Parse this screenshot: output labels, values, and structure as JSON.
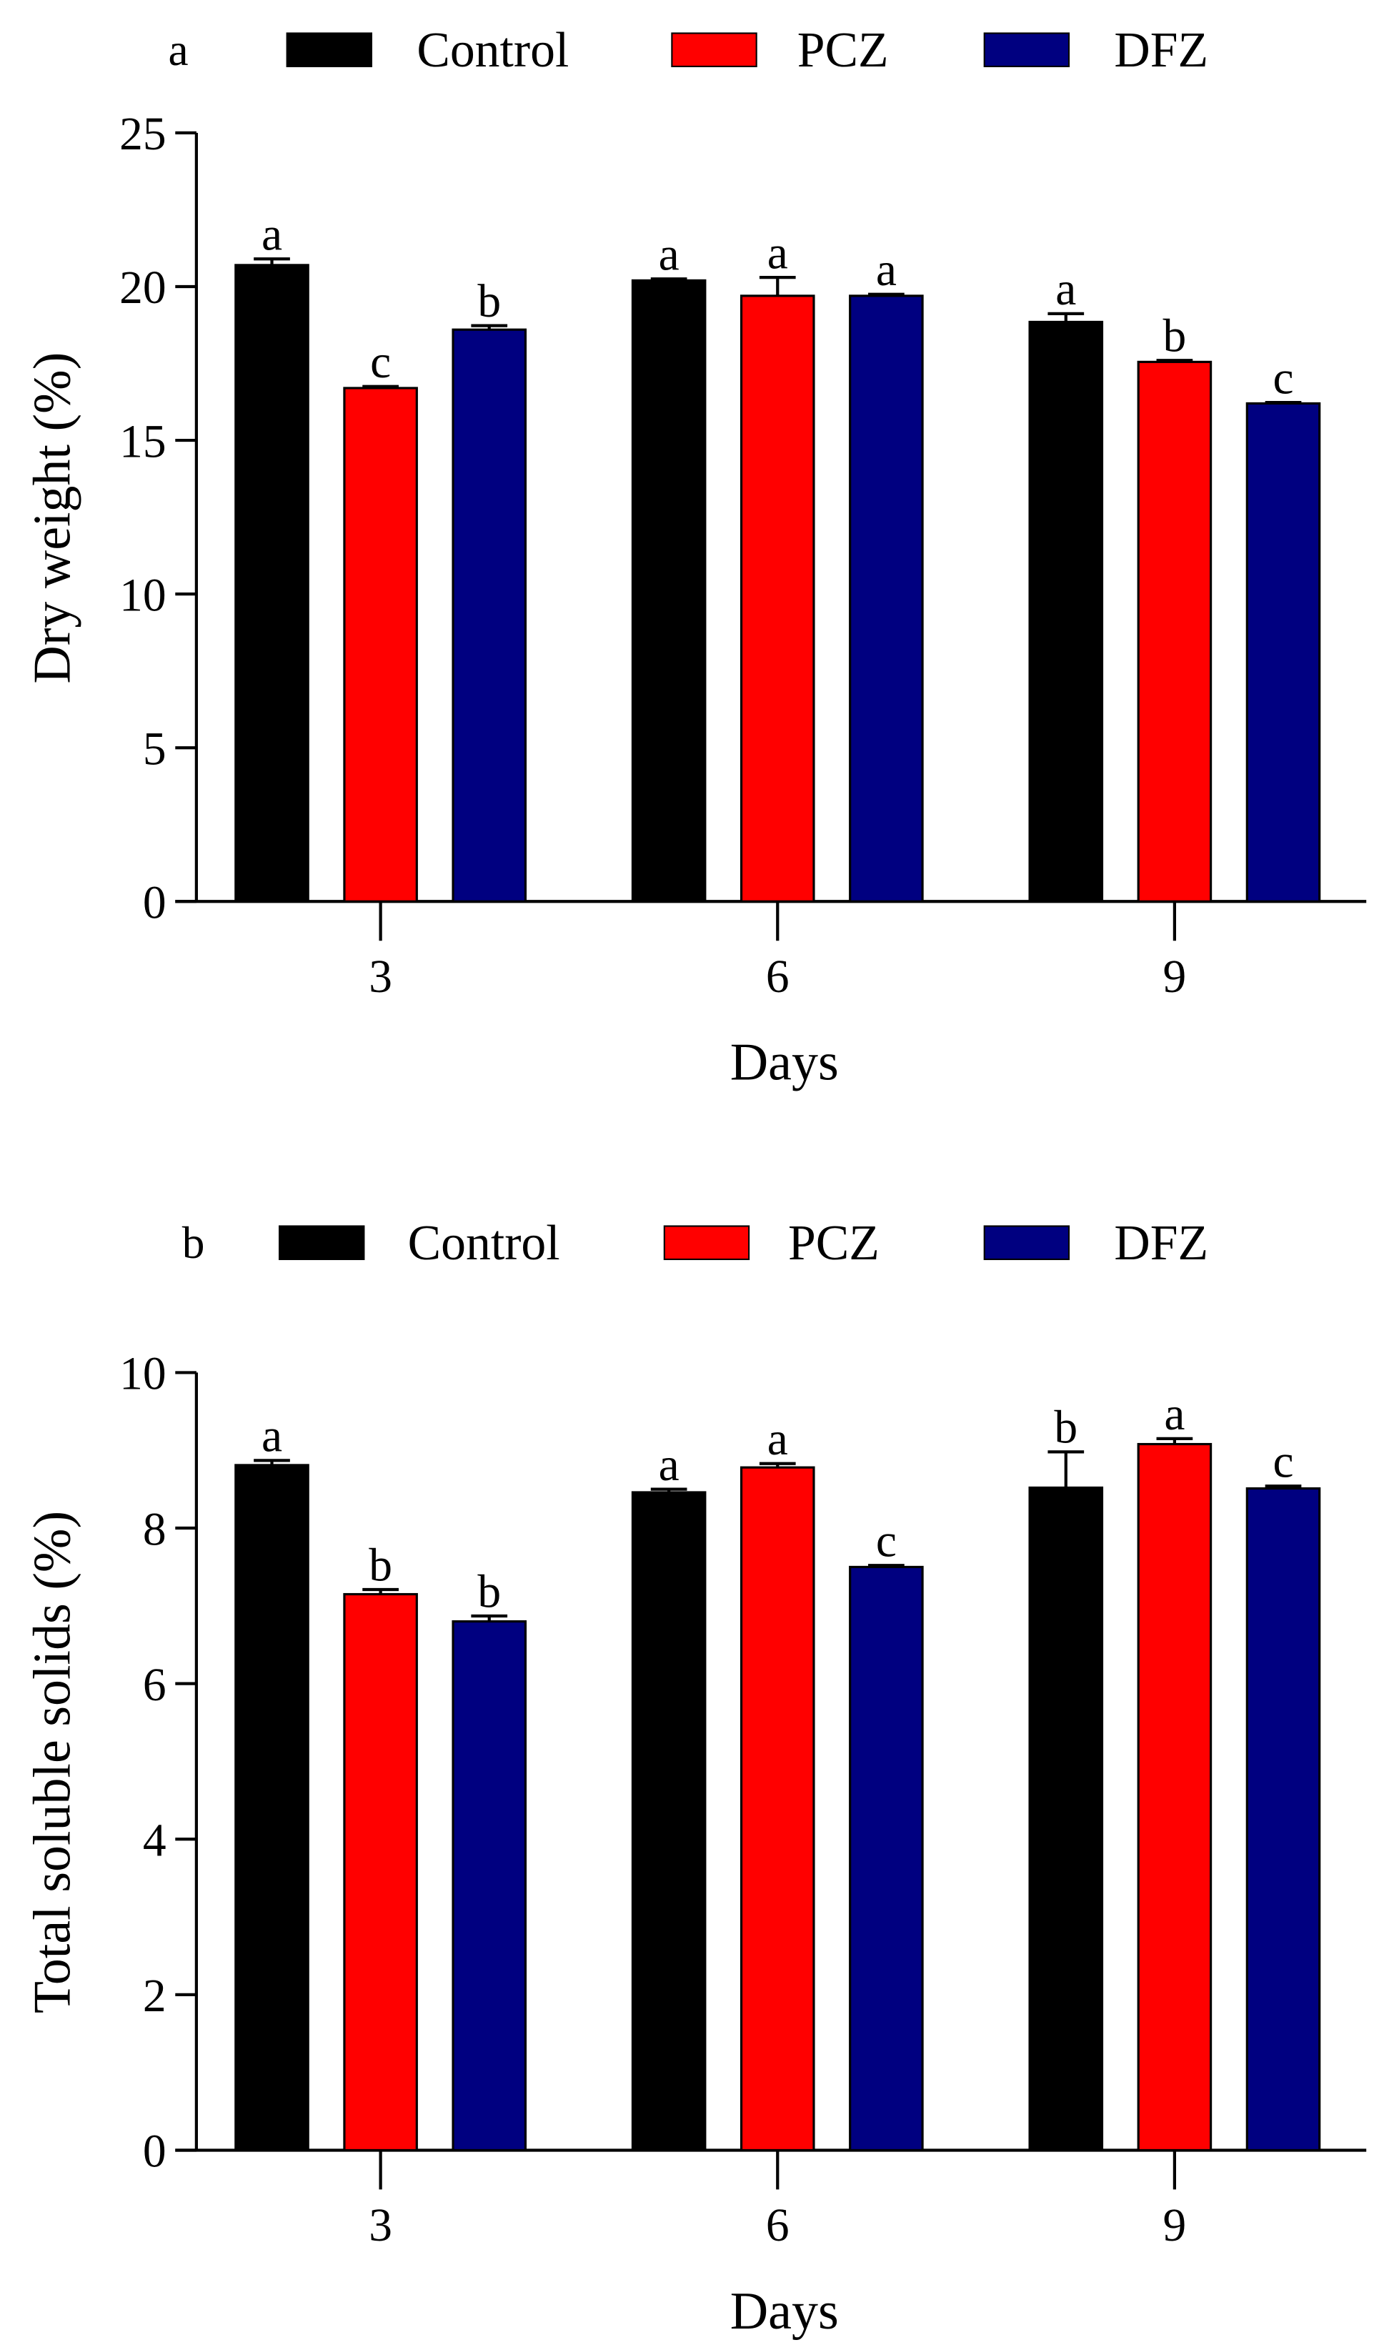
{
  "colors": {
    "Control": "#000000",
    "PCZ": "#ff0000",
    "DFZ": "#000080"
  },
  "chart_data": [
    {
      "type": "bar",
      "panel_label": "a",
      "categories": [
        "3",
        "6",
        "9"
      ],
      "xlabel": "Days",
      "ylabel": "Dry weight (%)",
      "ylim": [
        0,
        25
      ],
      "yticks": [
        "0",
        "5",
        "10",
        "15",
        "20",
        "25"
      ],
      "legend": [
        "Control",
        "PCZ",
        "DFZ"
      ],
      "legend_position": "top",
      "series": [
        {
          "name": "Control",
          "values": [
            20.7,
            20.2,
            18.85
          ],
          "errors": [
            0.2,
            0.05,
            0.27
          ],
          "letters": [
            "a",
            "a",
            "a"
          ]
        },
        {
          "name": "PCZ",
          "values": [
            16.7,
            19.7,
            17.55
          ],
          "errors": [
            0.05,
            0.6,
            0.05
          ],
          "letters": [
            "c",
            "a",
            "b"
          ]
        },
        {
          "name": "DFZ",
          "values": [
            18.6,
            19.7,
            16.2
          ],
          "errors": [
            0.13,
            0.05,
            0.03
          ],
          "letters": [
            "b",
            "a",
            "c"
          ]
        }
      ]
    },
    {
      "type": "bar",
      "panel_label": "b",
      "categories": [
        "3",
        "6",
        "9"
      ],
      "xlabel": "Days",
      "ylabel": "Total soluble solids (%)",
      "ylim": [
        0,
        10
      ],
      "yticks": [
        "0",
        "2",
        "4",
        "6",
        "8",
        "10"
      ],
      "legend": [
        "Control",
        "PCZ",
        "DFZ"
      ],
      "legend_position": "top",
      "series": [
        {
          "name": "Control",
          "values": [
            8.81,
            8.46,
            8.52
          ],
          "errors": [
            0.06,
            0.04,
            0.46
          ],
          "letters": [
            "a",
            "a",
            "b"
          ]
        },
        {
          "name": "PCZ",
          "values": [
            7.15,
            8.78,
            9.08
          ],
          "errors": [
            0.06,
            0.05,
            0.07
          ],
          "letters": [
            "b",
            "a",
            "a"
          ]
        },
        {
          "name": "DFZ",
          "values": [
            6.8,
            7.5,
            8.51
          ],
          "errors": [
            0.07,
            0.02,
            0.03
          ],
          "letters": [
            "b",
            "c",
            "c"
          ]
        }
      ]
    }
  ]
}
